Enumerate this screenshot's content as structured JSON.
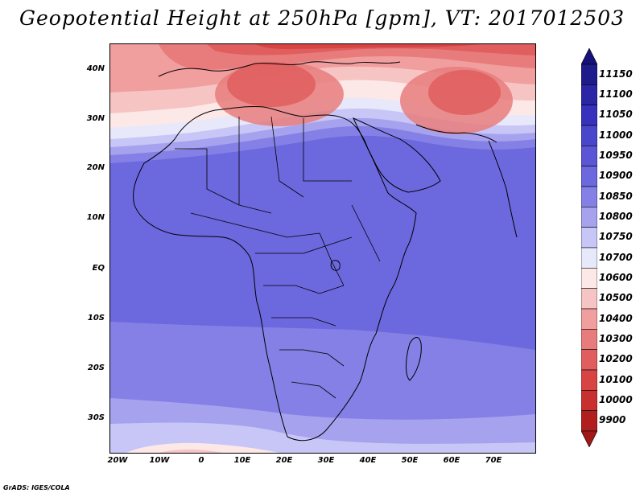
{
  "title": "Geopotential Height at 250hPa [gpm], VT: 2017012503",
  "credit": "GrADS: IGES/COLA",
  "lat_labels": [
    "40N",
    "30N",
    "20N",
    "10N",
    "EQ",
    "10S",
    "20S",
    "30S"
  ],
  "lon_labels": [
    "20W",
    "10W",
    "0",
    "10E",
    "20E",
    "30E",
    "40E",
    "50E",
    "60E",
    "70E"
  ],
  "colorbar": {
    "labels": [
      "11150",
      "11100",
      "11050",
      "11000",
      "10950",
      "10900",
      "10850",
      "10800",
      "10750",
      "10700",
      "10600",
      "10500",
      "10400",
      "10300",
      "10200",
      "10100",
      "10000",
      "9900"
    ],
    "colors": [
      "#1e1b8a",
      "#2a26a6",
      "#3632bd",
      "#4a46cc",
      "#5a56d6",
      "#6c68de",
      "#8480e6",
      "#a6a2ee",
      "#c8c6f6",
      "#e8e8fb",
      "#fde8e8",
      "#f7c4c4",
      "#f09e9e",
      "#e87c7c",
      "#e05e5e",
      "#d84444",
      "#c83030",
      "#b01e1e"
    ],
    "top_color": "#16127a",
    "bottom_color": "#a01818"
  },
  "chart_data": {
    "type": "heatmap",
    "title": "Geopotential Height at 250hPa [gpm], VT: 2017012503",
    "variable": "Geopotential Height at 250hPa",
    "units": "gpm",
    "valid_time": "2017012503",
    "lon_range": [
      -22,
      80
    ],
    "lat_range": [
      -38,
      46
    ],
    "contour_levels": [
      9900,
      10000,
      10100,
      10200,
      10300,
      10400,
      10500,
      10600,
      10700,
      10750,
      10800,
      10850,
      10900,
      10950,
      11000,
      11050,
      11100,
      11150
    ],
    "x_ticks": [
      "20W",
      "10W",
      "0",
      "10E",
      "20E",
      "30E",
      "40E",
      "50E",
      "60E",
      "70E"
    ],
    "y_ticks": [
      "40N",
      "30N",
      "20N",
      "10N",
      "EQ",
      "10S",
      "20S",
      "30S"
    ]
  }
}
